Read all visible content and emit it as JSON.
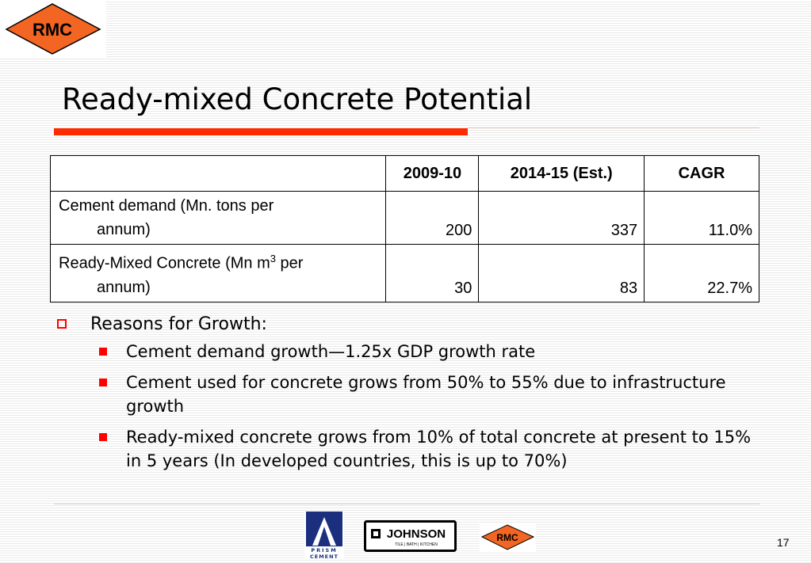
{
  "logos": {
    "top": "RMC",
    "footer_prism": "PRISM",
    "footer_prism_sub": "CEMENT",
    "footer_johnson": "JOHNSON",
    "footer_johnson_sub": "TILE | BATH | KITCHEN",
    "footer_rmc": "RMC"
  },
  "slide": {
    "title": "Ready-mixed Concrete Potential",
    "page_number": "17"
  },
  "table": {
    "headers": [
      "",
      "2009-10",
      "2014-15 (Est.)",
      "CAGR"
    ],
    "rows": [
      {
        "label_line1": "Cement demand (Mn. tons per",
        "label_line2": "annum)",
        "v2009": "200",
        "v2014": "337",
        "cagr": "11.0%"
      },
      {
        "label_line1_pre": "Ready-Mixed Concrete (Mn m",
        "label_line1_sup": "3",
        "label_line1_post": " per",
        "label_line2": "annum)",
        "v2009": "30",
        "v2014": "83",
        "cagr": "22.7%"
      }
    ]
  },
  "bullets": {
    "heading": "Reasons for Growth:",
    "items": [
      "Cement demand growth—1.25x GDP growth rate",
      "Cement used for concrete grows from 50% to 55% due to infrastructure growth",
      "Ready-mixed concrete grows from 10% of total concrete at present to 15% in 5 years (In developed countries, this is up to 70%)"
    ]
  },
  "colors": {
    "accent_red": "#ff2a00",
    "logo_orange": "#f26522",
    "prism_blue": "#1b2f7e"
  }
}
